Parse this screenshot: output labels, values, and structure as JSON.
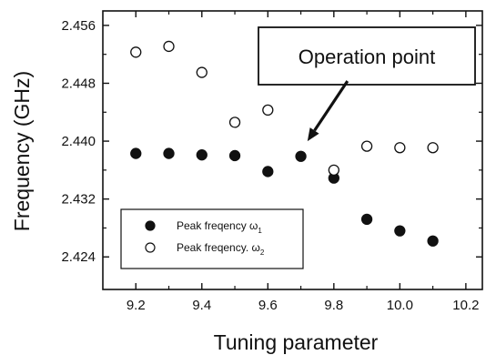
{
  "chart_data": {
    "type": "scatter",
    "xlabel": "Tuning parameter",
    "ylabel": "Frequency (GHz)",
    "xlim": [
      9.1,
      10.25
    ],
    "ylim": [
      2.4195,
      2.458
    ],
    "xticks": [
      "9.2",
      "9.4",
      "9.6",
      "9.8",
      "10.0",
      "10.2"
    ],
    "xtick_values": [
      9.2,
      9.4,
      9.6,
      9.8,
      10.0,
      10.2
    ],
    "yticks": [
      "2.424",
      "2.432",
      "2.440",
      "2.448",
      "2.456"
    ],
    "ytick_values": [
      2.424,
      2.432,
      2.44,
      2.448,
      2.456
    ],
    "grid": false,
    "legend_position": "bottom-left",
    "series": [
      {
        "name": "Peak freqency ω1",
        "legend_main": "Peak freqency ω",
        "legend_sub": "1",
        "marker": "filled-circle",
        "x": [
          9.2,
          9.3,
          9.4,
          9.5,
          9.6,
          9.7,
          9.8,
          9.9,
          10.0,
          10.1
        ],
        "y": [
          2.4383,
          2.4383,
          2.4381,
          2.438,
          2.4358,
          2.4379,
          2.4349,
          2.4292,
          2.4276,
          2.4262
        ]
      },
      {
        "name": "Peak freqency. ω2",
        "legend_main": "Peak freqency. ω",
        "legend_sub": "2",
        "marker": "open-circle",
        "x": [
          9.2,
          9.3,
          9.4,
          9.5,
          9.6,
          9.7,
          9.8,
          9.9,
          10.0,
          10.1
        ],
        "y": [
          2.4523,
          2.4531,
          2.4495,
          2.4426,
          2.4443,
          null,
          2.436,
          2.4393,
          2.4391,
          2.4391
        ]
      }
    ],
    "annotation": {
      "text": "Operation point",
      "target_x": 9.72,
      "target_y": 2.44
    }
  }
}
